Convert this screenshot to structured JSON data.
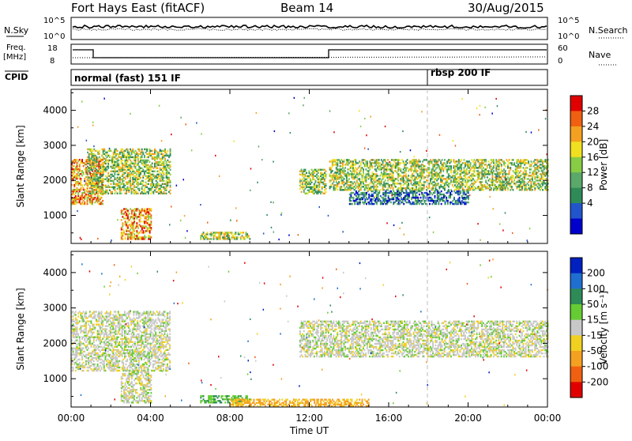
{
  "header": {
    "station": "Fort Hays East (fitACF)",
    "beam": "Beam 14",
    "date": "30/Aug/2015"
  },
  "strip_labels": {
    "nsky": "N.Sky",
    "nsky_ticks": [
      "10^5",
      "10^0"
    ],
    "nsearch": "N.Search",
    "nsearch_ticks": [
      "10^5",
      "10^0"
    ],
    "freq": "Freq.",
    "freq_unit": "[MHz]",
    "freq_ticks": [
      "18",
      "8"
    ],
    "nave": "Nave",
    "nave_ticks": [
      "60",
      "0"
    ],
    "cpid": "CPID",
    "cpid_mode_1": "normal (fast) 151 IF",
    "cpid_mode_2": "rbsp 200 IF"
  },
  "chart_data": [
    {
      "type": "heatmap",
      "panel": "power",
      "ylabel": "Slant Range [km]",
      "xlabel": "",
      "x_ticks": [
        "00:00",
        "04:00",
        "08:00",
        "12:00",
        "16:00",
        "20:00",
        "00:00"
      ],
      "y_ticks": [
        1000,
        2000,
        3000,
        4000
      ],
      "ylim": [
        200,
        4600
      ],
      "xlim_hours": [
        0,
        24
      ],
      "colorbar": {
        "label": "Power [dB]",
        "ticks": [
          "4",
          "8",
          "12",
          "16",
          "20",
          "24",
          "28"
        ],
        "colors": [
          "#0000cc",
          "#2255cc",
          "#2e8b57",
          "#5aa86a",
          "#88cc44",
          "#f0e020",
          "#f4a020",
          "#f06010",
          "#e00000"
        ]
      },
      "echo_regions": [
        {
          "t_start": 0.0,
          "t_end": 1.6,
          "r_start": 1300,
          "r_end": 2600,
          "level": "high"
        },
        {
          "t_start": 0.8,
          "t_end": 5.0,
          "r_start": 1600,
          "r_end": 2900,
          "level": "mid"
        },
        {
          "t_start": 2.5,
          "t_end": 4.0,
          "r_start": 300,
          "r_end": 1200,
          "level": "high"
        },
        {
          "t_start": 6.5,
          "t_end": 9.0,
          "r_start": 300,
          "r_end": 500,
          "level": "mid"
        },
        {
          "t_start": 11.5,
          "t_end": 12.8,
          "r_start": 1600,
          "r_end": 2300,
          "level": "mid"
        },
        {
          "t_start": 13.0,
          "t_end": 24.0,
          "r_start": 1700,
          "r_end": 2600,
          "level": "mid"
        },
        {
          "t_start": 14.0,
          "t_end": 20.0,
          "r_start": 1300,
          "r_end": 1700,
          "level": "low"
        }
      ]
    },
    {
      "type": "heatmap",
      "panel": "velocity",
      "ylabel": "Slant Range [km]",
      "xlabel": "Time UT",
      "x_ticks": [
        "00:00",
        "04:00",
        "08:00",
        "12:00",
        "16:00",
        "20:00",
        "00:00"
      ],
      "y_ticks": [
        1000,
        2000,
        3000,
        4000
      ],
      "ylim": [
        200,
        4600
      ],
      "xlim_hours": [
        0,
        24
      ],
      "colorbar": {
        "label": "Velocity [m s⁻¹]",
        "ticks": [
          "200",
          "100",
          "50",
          "15",
          "-15",
          "-50",
          "-100",
          "-200"
        ],
        "colors": [
          "#0020c0",
          "#1f6fd0",
          "#2e8b57",
          "#66cc33",
          "#c8c8c8",
          "#f0d020",
          "#f4a020",
          "#f06010",
          "#e00000"
        ]
      },
      "echo_regions": [
        {
          "t_start": 0.0,
          "t_end": 5.0,
          "r_start": 1200,
          "r_end": 2900,
          "level": "ground"
        },
        {
          "t_start": 2.5,
          "t_end": 4.0,
          "r_start": 300,
          "r_end": 1200,
          "level": "ground"
        },
        {
          "t_start": 6.5,
          "t_end": 9.0,
          "r_start": 300,
          "r_end": 500,
          "level": "positive"
        },
        {
          "t_start": 8.0,
          "t_end": 15.0,
          "r_start": 200,
          "r_end": 400,
          "level": "negative"
        },
        {
          "t_start": 11.5,
          "t_end": 24.0,
          "r_start": 1600,
          "r_end": 2600,
          "level": "ground"
        }
      ]
    }
  ]
}
